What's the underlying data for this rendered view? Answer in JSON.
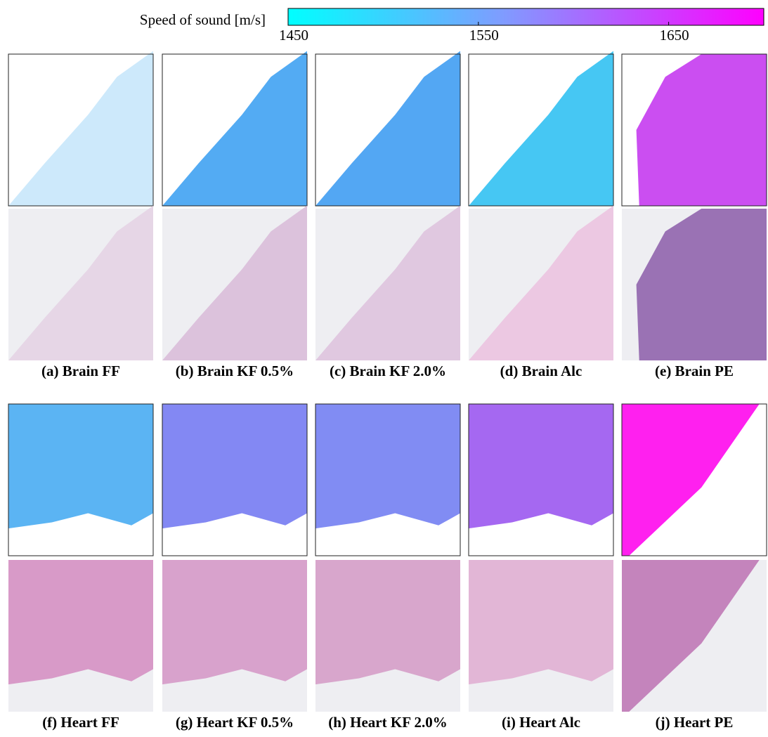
{
  "colorbar": {
    "label": "Speed of sound [m/s]",
    "clim": [
      1450,
      1700
    ],
    "ticks": [
      1450,
      1550,
      1650
    ]
  },
  "panels": [
    {
      "caption": "(a) Brain FF"
    },
    {
      "caption": "(b) Brain KF 0.5%"
    },
    {
      "caption": "(c) Brain KF 2.0%"
    },
    {
      "caption": "(d) Brain Alc"
    },
    {
      "caption": "(e) Brain PE"
    },
    {
      "caption": "(f) Heart FF"
    },
    {
      "caption": "(g) Heart KF 0.5%"
    },
    {
      "caption": "(h) Heart KF 2.0%"
    },
    {
      "caption": "(i) Heart Alc"
    },
    {
      "caption": "(j) Heart PE"
    }
  ]
}
